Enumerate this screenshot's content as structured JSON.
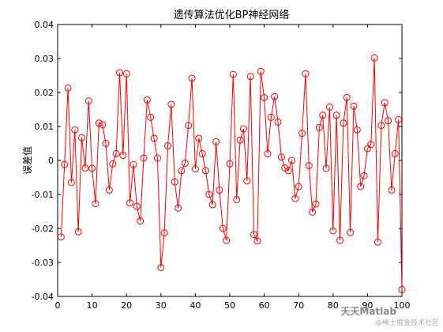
{
  "chart_data": {
    "type": "line",
    "title": "遗传算法优化BP神经网络",
    "xlabel": "",
    "ylabel": "误差值",
    "xlim": [
      0,
      100
    ],
    "ylim": [
      -0.04,
      0.04
    ],
    "xticks": [
      "0",
      "10",
      "20",
      "30",
      "40",
      "50",
      "60",
      "70",
      "80",
      "90",
      "100"
    ],
    "yticks": [
      "0.04",
      "0.03",
      "0.02",
      "0.01",
      "0",
      "-0.01",
      "-0.02",
      "-0.03",
      "-0.04"
    ],
    "grid": false,
    "marker": "circle",
    "series": [
      {
        "color": "#ff0000",
        "x": [
          1,
          2,
          3,
          4,
          5,
          6,
          7,
          8,
          9,
          10,
          11,
          12,
          13,
          14,
          15,
          16,
          17,
          18,
          19,
          20,
          21,
          22,
          23,
          24,
          25,
          26,
          27,
          28,
          29,
          30,
          31,
          32,
          33,
          34,
          35,
          36,
          37,
          38,
          39,
          40,
          41,
          42,
          43,
          44,
          45,
          46,
          47,
          48,
          49,
          50,
          51,
          52,
          53,
          54,
          55,
          56,
          57,
          58,
          59,
          60,
          61,
          62,
          63,
          64,
          65,
          66,
          67,
          68,
          69,
          70,
          71,
          72,
          73,
          74,
          75,
          76,
          77,
          78,
          79,
          80,
          81,
          82,
          83,
          84,
          85,
          86,
          87,
          88,
          89,
          90,
          91,
          92,
          93,
          94,
          95,
          96,
          97,
          98,
          99,
          100
        ],
        "y": [
          -0.0225,
          -0.0012,
          0.0213,
          -0.0065,
          0.009,
          -0.021,
          0.0067,
          -0.0022,
          0.0175,
          -0.0023,
          -0.0127,
          0.011,
          0.0105,
          0.005,
          -0.0087,
          -0.001,
          0.002,
          0.0258,
          0.0015,
          0.0255,
          -0.0125,
          -0.0012,
          -0.0135,
          -0.0178,
          0.0007,
          0.0178,
          0.0127,
          0.0065,
          0.0007,
          -0.0315,
          -0.0213,
          0.0043,
          0.0165,
          -0.0063,
          -0.014,
          -0.003,
          -0.0008,
          0.0103,
          0.0242,
          -0.0025,
          0.0065,
          0.002,
          -0.003,
          -0.01,
          -0.013,
          0.0055,
          -0.0087,
          -0.02,
          -0.0235,
          -0.001,
          0.0253,
          -0.0115,
          0.006,
          0.0093,
          -0.006,
          0.0247,
          -0.0218,
          -0.0237,
          0.0262,
          0.0185,
          0.002,
          0.0127,
          0.0188,
          0.0113,
          0.001,
          -0.0022,
          -0.003,
          0.0,
          -0.0112,
          -0.0077,
          0.008,
          0.0255,
          -0.0015,
          -0.0152,
          -0.0128,
          0.0097,
          0.0133,
          -0.0023,
          0.0157,
          -0.0207,
          0.0133,
          -0.0235,
          0.011,
          0.0185,
          -0.0212,
          0.016,
          0.009,
          -0.0077,
          -0.0045,
          0.0035,
          0.0047,
          0.0302,
          -0.024,
          0.0103,
          0.017,
          0.0117,
          -0.0087,
          0.002,
          0.012,
          -0.038
        ]
      }
    ]
  },
  "watermark": {
    "brand": "天天Matlab",
    "sub": "@稀土掘金技术社区"
  }
}
